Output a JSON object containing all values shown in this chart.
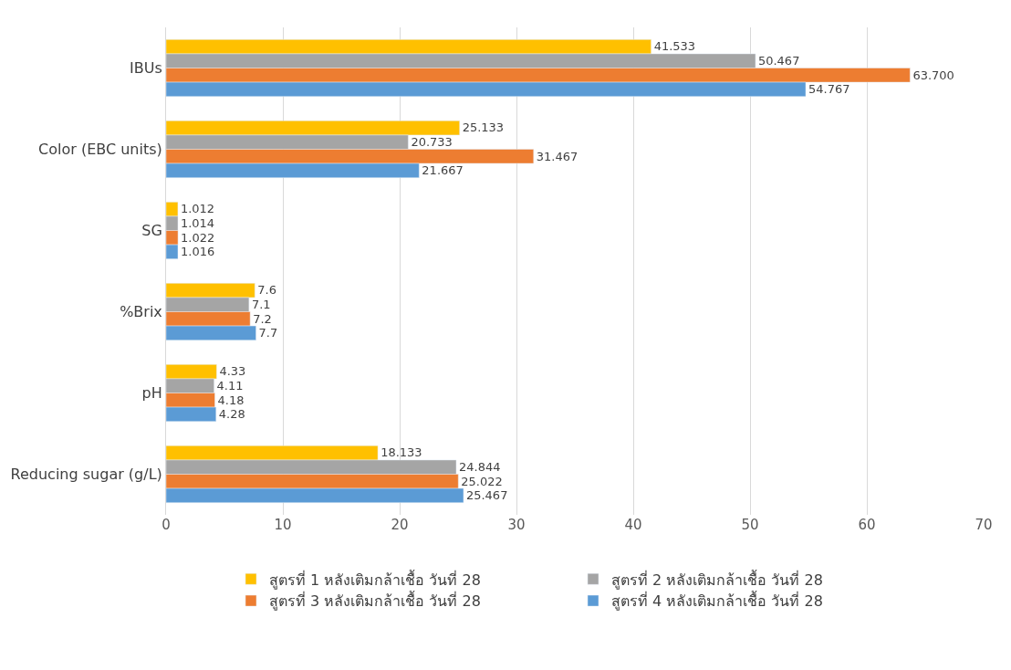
{
  "chart_data": {
    "type": "bar",
    "orientation": "horizontal",
    "categories": [
      "IBUs",
      "Color (EBC units)",
      "SG",
      "%Brix",
      "pH",
      "Reducing sugar (g/L)"
    ],
    "series": [
      {
        "name": "สูตรที่ 1 หลังเติมกล้าเชื้อ วันที่ 28",
        "color": "#ffc000",
        "values": [
          41.533,
          25.133,
          1.012,
          7.6,
          4.33,
          18.133
        ],
        "value_labels": [
          "41.533",
          "25.133",
          "1.012",
          "7.6",
          "4.33",
          "18.133"
        ]
      },
      {
        "name": "สูตรที่ 2 หลังเติมกล้าเชื้อ วันที่ 28",
        "color": "#a5a5a5",
        "values": [
          50.467,
          20.733,
          1.014,
          7.1,
          4.11,
          24.844
        ],
        "value_labels": [
          "50.467",
          "20.733",
          "1.014",
          "7.1",
          "4.11",
          "24.844"
        ]
      },
      {
        "name": "สูตรที่ 3 หลังเติมกล้าเชื้อ วันที่ 28",
        "color": "#ed7d31",
        "values": [
          63.7,
          31.467,
          1.022,
          7.2,
          4.18,
          25.022
        ],
        "value_labels": [
          "63.700",
          "31.467",
          "1.022",
          "7.2",
          "4.18",
          "25.022"
        ]
      },
      {
        "name": "สูตรที่ 4 หลังเติมกล้าเชื้อ วันที่ 28",
        "color": "#5b9bd5",
        "values": [
          54.767,
          21.667,
          1.016,
          7.7,
          4.28,
          25.467
        ],
        "value_labels": [
          "54.767",
          "21.667",
          "1.016",
          "7.7",
          "4.28",
          "25.467"
        ]
      }
    ],
    "xlim": [
      0,
      70
    ],
    "xticks": [
      0,
      10,
      20,
      30,
      40,
      50,
      60,
      70
    ],
    "grid": "x",
    "legend": "bottom"
  }
}
